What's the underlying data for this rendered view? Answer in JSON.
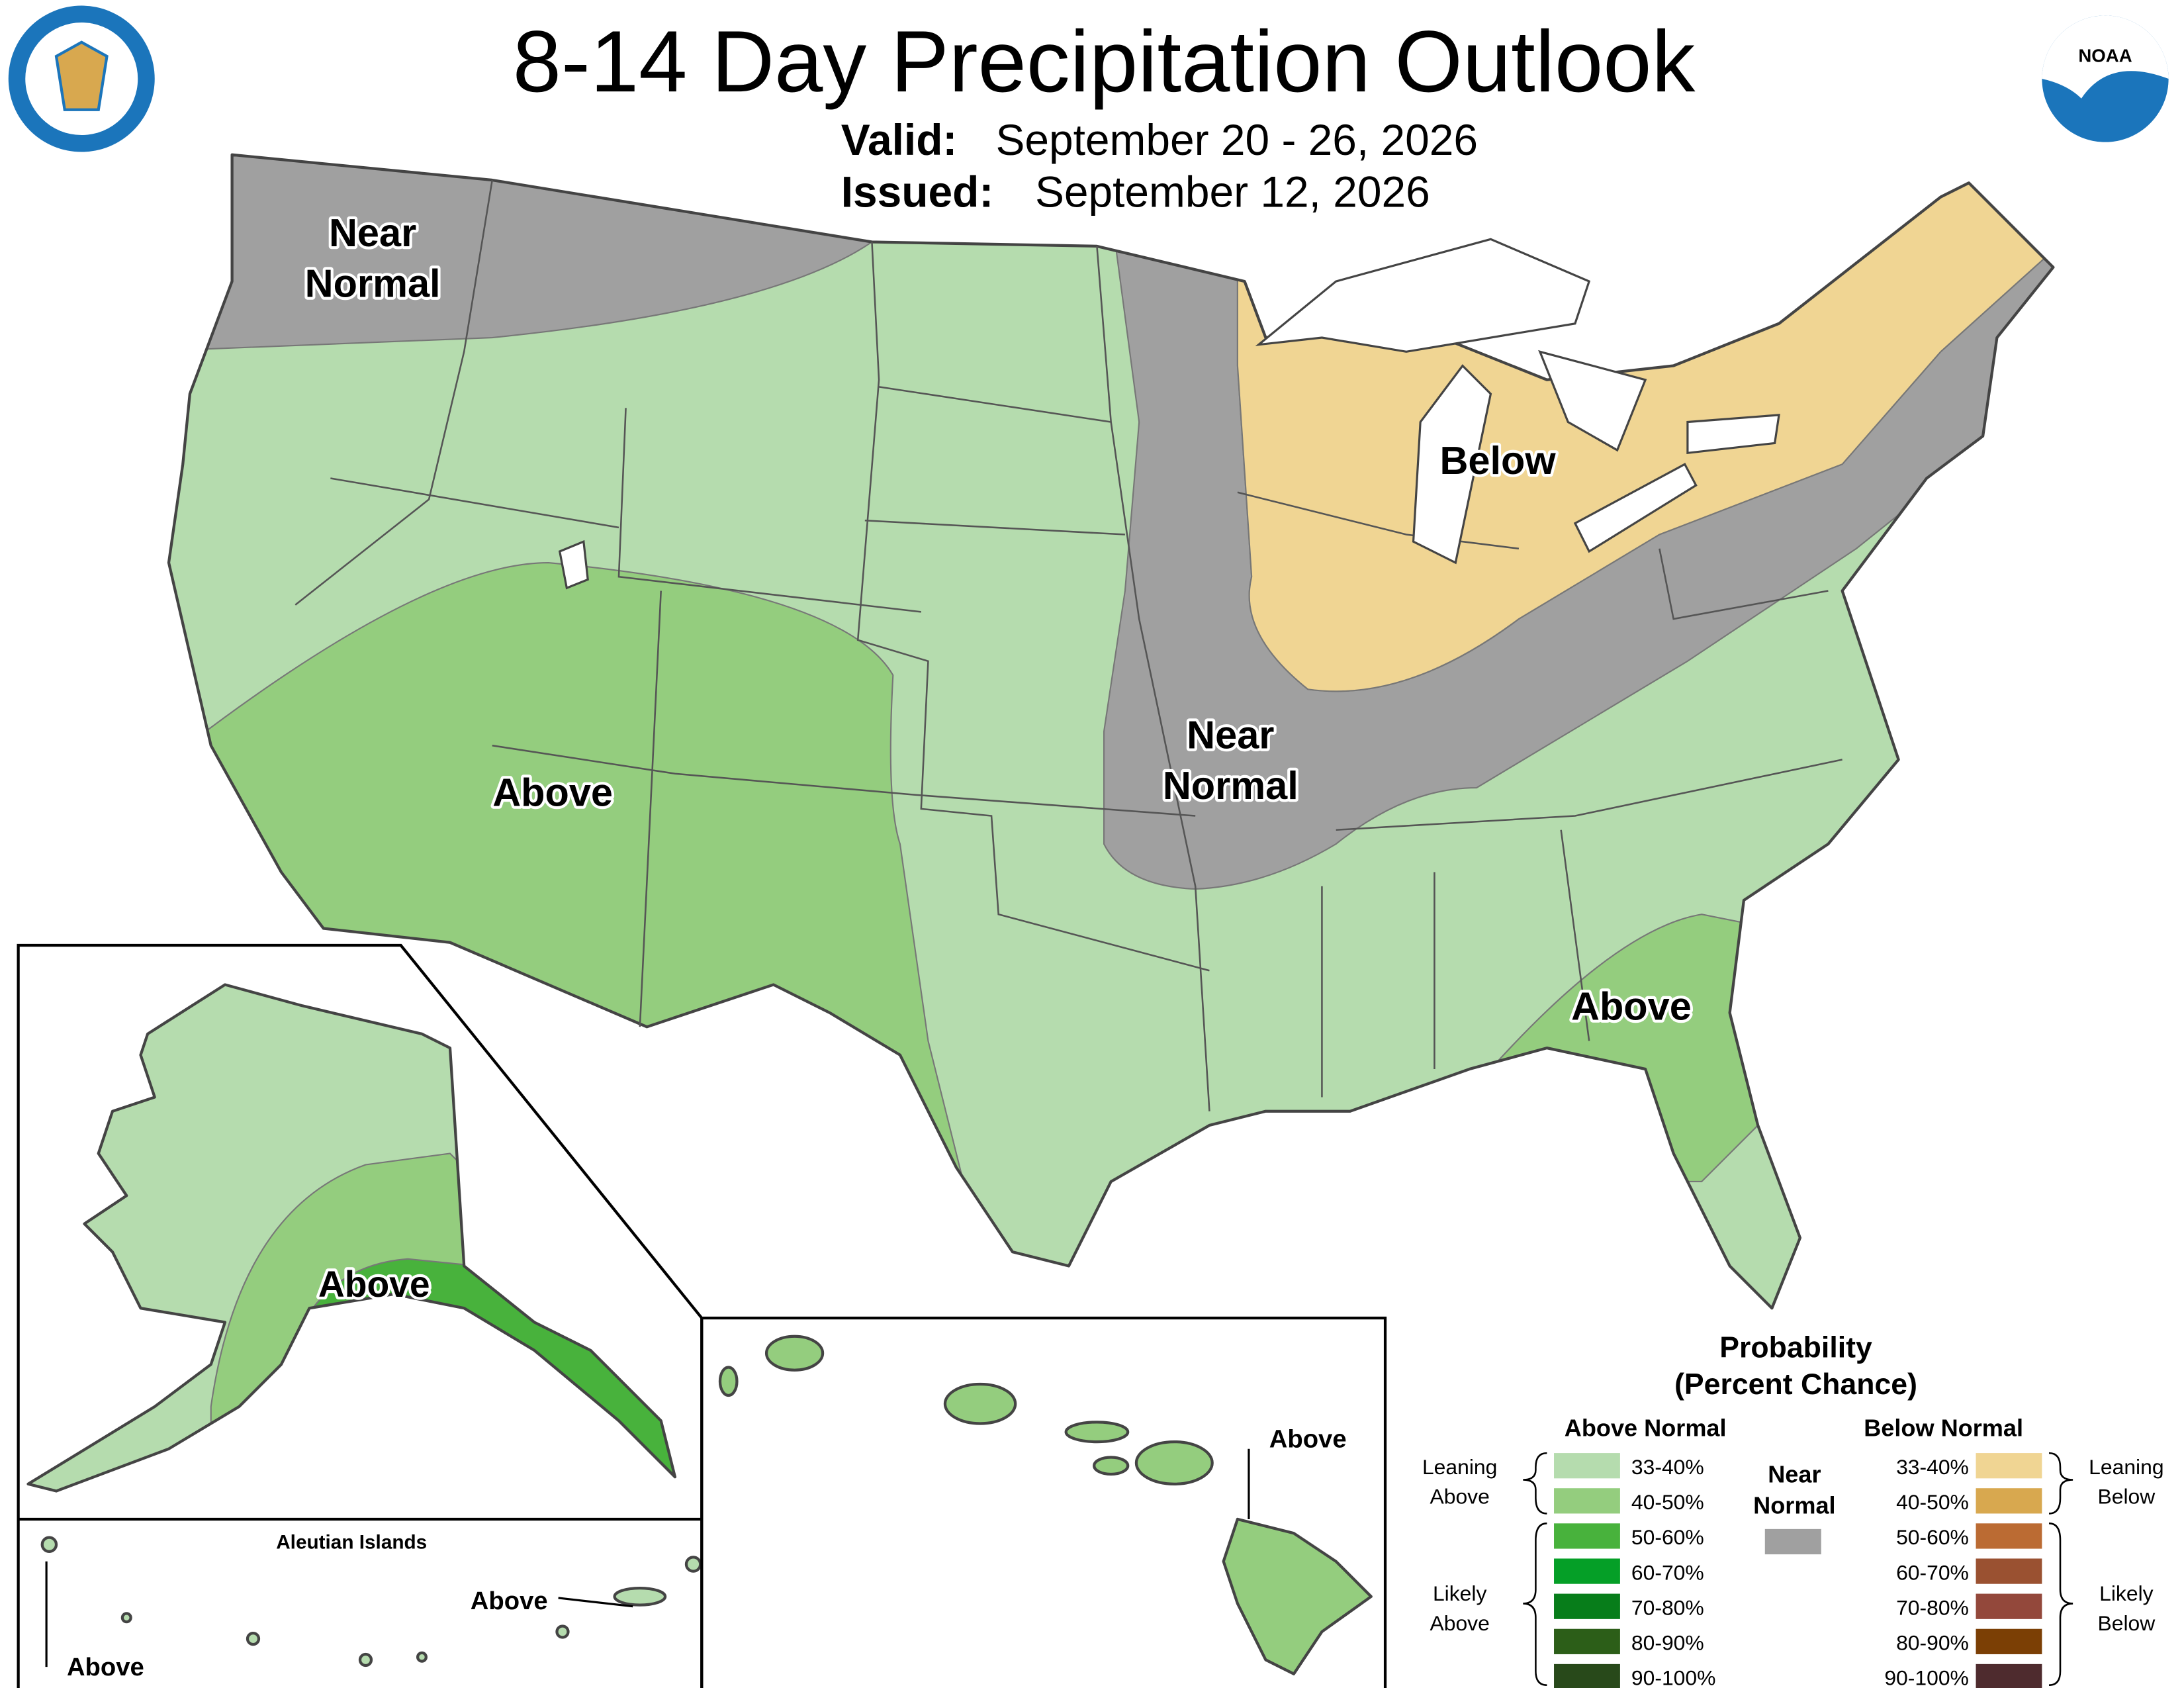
{
  "header": {
    "title": "8-14 Day Precipitation Outlook",
    "valid_label": "Valid:",
    "valid": "September 20 - 26, 2026",
    "issued_label": "Issued:",
    "issued": "September 12, 2026",
    "noaa_logo": "NOAA"
  },
  "map_labels": [
    [
      "Near",
      "Normal"
    ],
    [
      "Above"
    ],
    [
      "Near",
      "Normal"
    ],
    [
      "Below"
    ],
    [
      "Above"
    ]
  ],
  "insets": {
    "alaska": "Above",
    "aleutian_title": "Aleutian Islands",
    "aleutian_east": "Above",
    "aleutian_west": "Above",
    "hawaii": "Above"
  },
  "legend": {
    "title": [
      "Probability",
      "(Percent Chance)"
    ],
    "above_header": "Above Normal",
    "below_header": "Below Normal",
    "near": [
      "Near",
      "Normal"
    ],
    "near_color": "#a0a0a0",
    "above_items": [
      {
        "label": "33-40%",
        "color": "#b5dcae"
      },
      {
        "label": "40-50%",
        "color": "#94cd7e"
      },
      {
        "label": "50-60%",
        "color": "#48b23c"
      },
      {
        "label": "60-70%",
        "color": "#059f27"
      },
      {
        "label": "70-80%",
        "color": "#077d1a"
      },
      {
        "label": "80-90%",
        "color": "#2c5e18"
      },
      {
        "label": "90-100%",
        "color": "#28491a"
      }
    ],
    "below_items": [
      {
        "label": "33-40%",
        "color": "#f0d593"
      },
      {
        "label": "40-50%",
        "color": "#d8a84f"
      },
      {
        "label": "50-60%",
        "color": "#bb6b33"
      },
      {
        "label": "60-70%",
        "color": "#9a5131"
      },
      {
        "label": "70-80%",
        "color": "#93483b"
      },
      {
        "label": "80-90%",
        "color": "#7b3f05"
      },
      {
        "label": "90-100%",
        "color": "#4e2b2e"
      }
    ],
    "leaning_above": [
      "Leaning",
      "Above"
    ],
    "likely_above": [
      "Likely",
      "Above"
    ],
    "leaning_below": [
      "Leaning",
      "Below"
    ],
    "likely_below": [
      "Likely",
      "Below"
    ]
  }
}
